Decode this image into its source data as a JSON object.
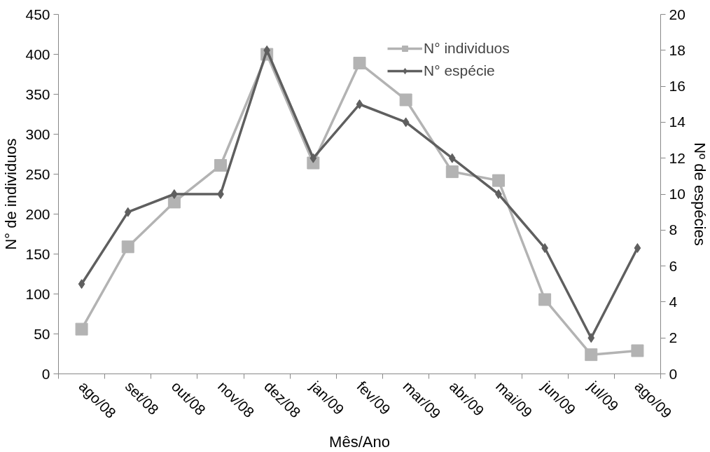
{
  "chart_data": {
    "type": "line",
    "xlabel": "Mês/Ano",
    "ylabel": "N° de individuos",
    "y2label": "Nº de espécies",
    "categories": [
      "ago/08",
      "set/08",
      "out/08",
      "nov/08",
      "dez/08",
      "jan/09",
      "fev/09",
      "mar/09",
      "abr/09",
      "mai/09",
      "jun/09",
      "jul/09",
      "ago/09"
    ],
    "series": [
      {
        "name": "N° individuos",
        "color": "#b3b3b3",
        "marker": "square",
        "values": [
          56,
          159,
          215,
          261,
          400,
          264,
          389,
          343,
          253,
          242,
          93,
          24,
          29
        ]
      },
      {
        "name": "N° espécie",
        "color": "#5f5f5f",
        "marker": "diamond",
        "axis": "y2",
        "values": [
          5,
          9,
          10,
          10,
          18,
          12,
          15,
          14,
          12,
          10,
          7,
          2,
          7
        ]
      }
    ],
    "ylim": [
      0,
      450
    ],
    "yticks": [
      0,
      50,
      100,
      150,
      200,
      250,
      300,
      350,
      400,
      450
    ],
    "y2lim": [
      0,
      20
    ],
    "y2ticks": [
      0,
      2,
      4,
      6,
      8,
      10,
      12,
      14,
      16,
      18,
      20
    ],
    "grid": false,
    "legend": "top",
    "line_style": "solid"
  }
}
